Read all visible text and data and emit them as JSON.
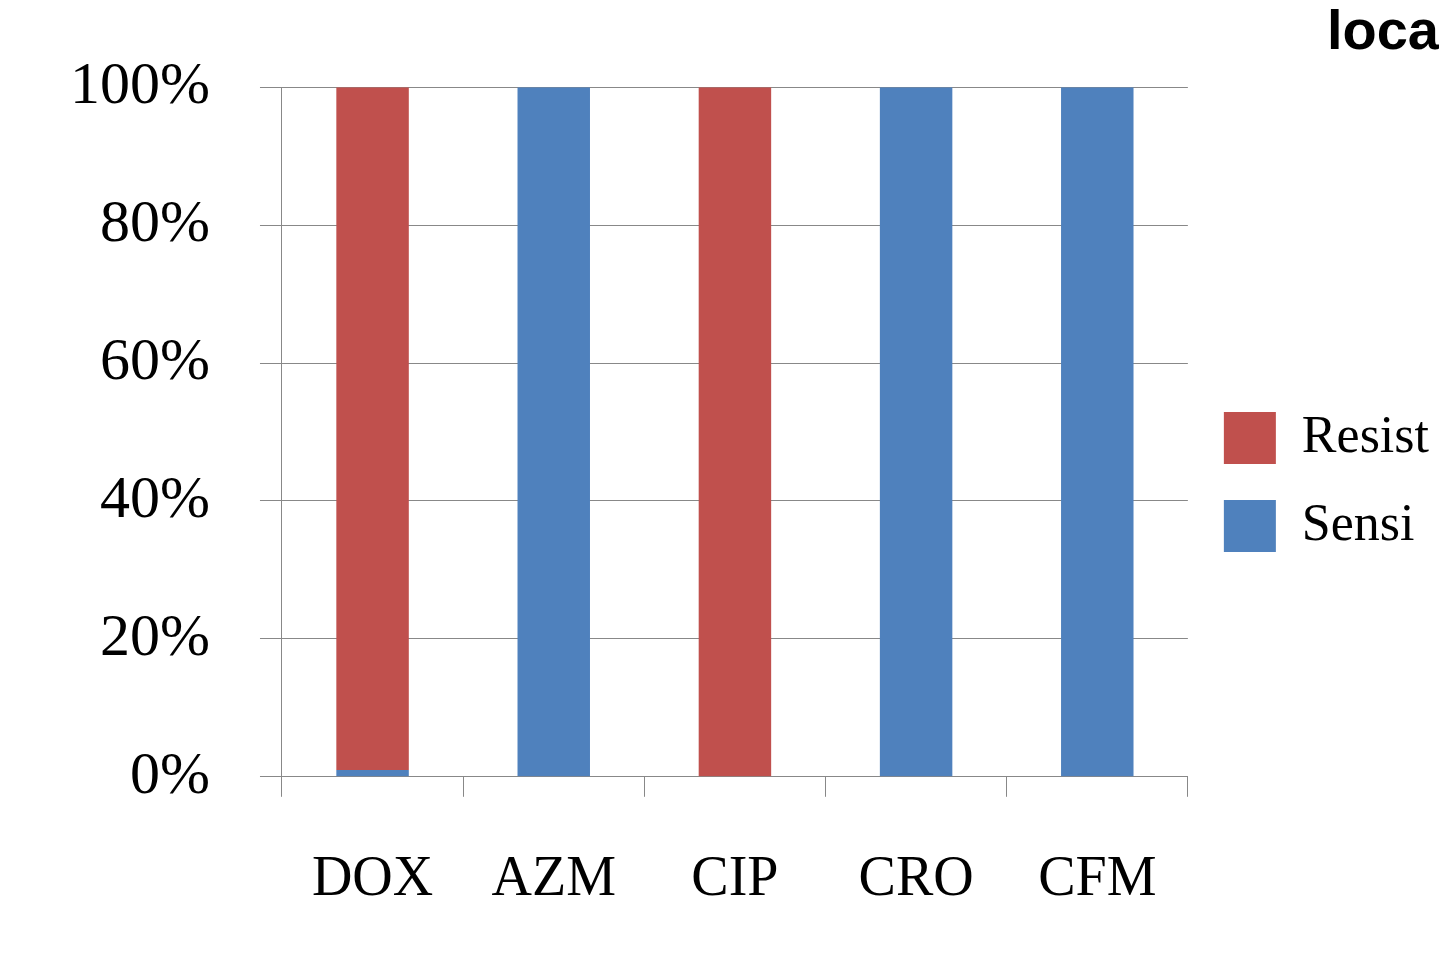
{
  "chart_data": {
    "type": "bar",
    "title": "loca",
    "stacked": true,
    "categories": [
      "DOX",
      "AZM",
      "CIP",
      "CRO",
      "CFM"
    ],
    "series": [
      {
        "name": "Sensi",
        "color": "#4f81bd",
        "values": [
          1,
          100,
          0,
          100,
          100
        ]
      },
      {
        "name": "Resist",
        "color": "#c0504d",
        "values": [
          99,
          0,
          100,
          0,
          0
        ]
      }
    ],
    "ylim": [
      0,
      100
    ],
    "yticks": [
      {
        "value": 0,
        "label": "0%"
      },
      {
        "value": 20,
        "label": "20%"
      },
      {
        "value": 40,
        "label": "40%"
      },
      {
        "value": 60,
        "label": "60%"
      },
      {
        "value": 80,
        "label": "80%"
      },
      {
        "value": 100,
        "label": "100%"
      }
    ],
    "grid": "y",
    "legend": "right"
  }
}
